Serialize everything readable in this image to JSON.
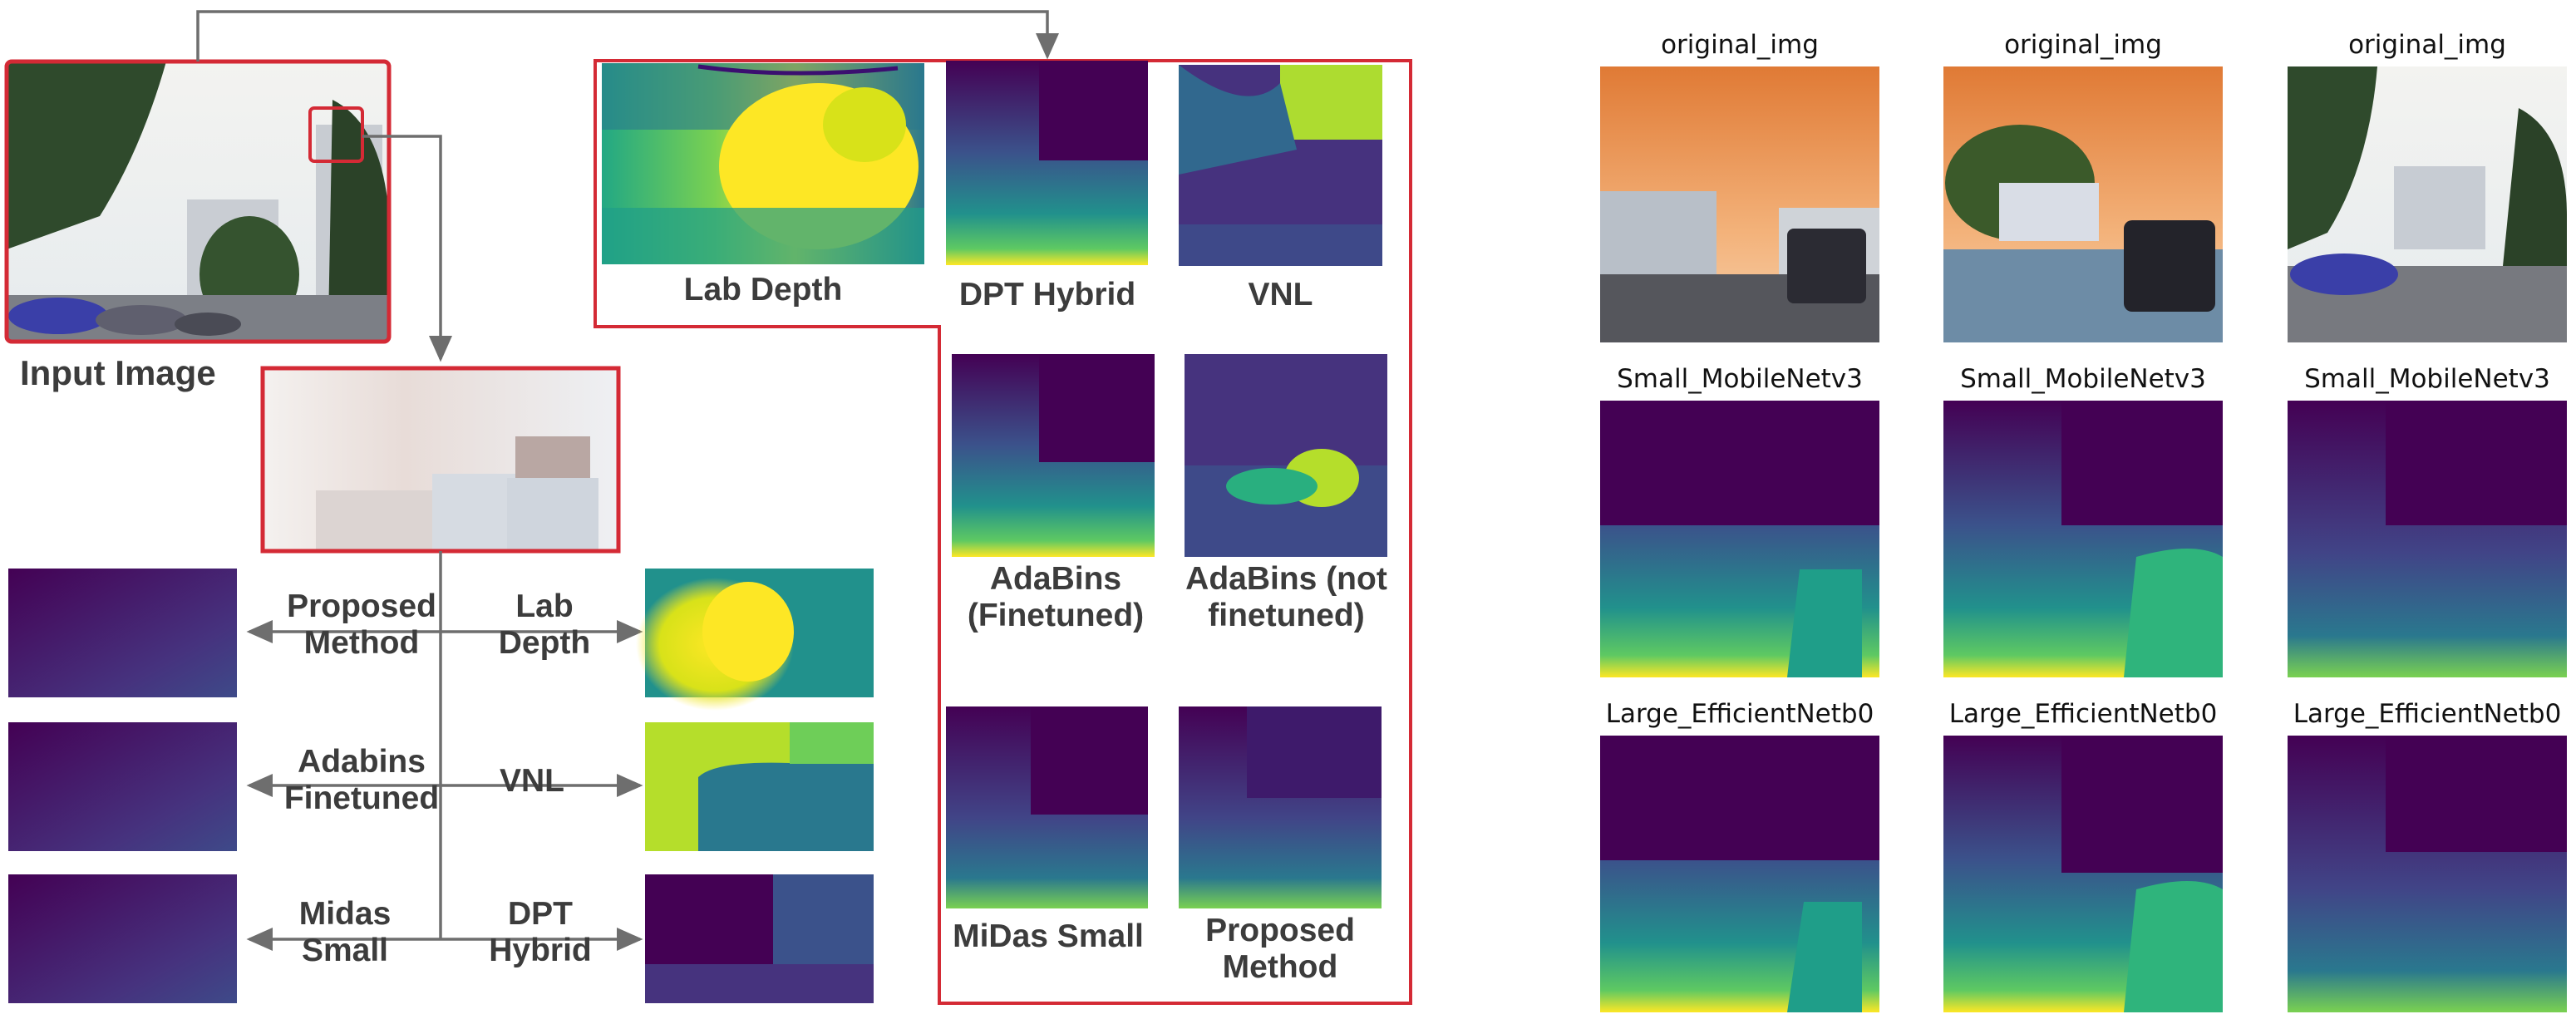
{
  "input_label": "Input Image",
  "comparison_panel": {
    "top_row": [
      "Lab Depth",
      "DPT Hybrid",
      "VNL"
    ],
    "middle_row": [
      "AdaBins\n(Finetuned)",
      "AdaBins (not\nfinetuned)"
    ],
    "bottom_row": [
      "MiDas Small",
      "Proposed\nMethod"
    ]
  },
  "zoom_comparison": {
    "left": [
      "Proposed\nMethod",
      "Adabins\nFinetuned",
      "Midas\nSmall"
    ],
    "right": [
      "Lab\nDepth",
      "VNL",
      "DPT\nHybrid"
    ]
  },
  "grid": {
    "rows": [
      "original_img",
      "Small_MobileNetv3",
      "Large_EfficientNetb0"
    ]
  },
  "colors": {
    "highlight": "#d42a35",
    "arrow": "#6e6e6e",
    "viridis_dark": "#440154",
    "viridis_blue": "#3b528b",
    "viridis_teal": "#21918c",
    "viridis_green": "#5ec962",
    "viridis_yellow": "#fde725"
  }
}
